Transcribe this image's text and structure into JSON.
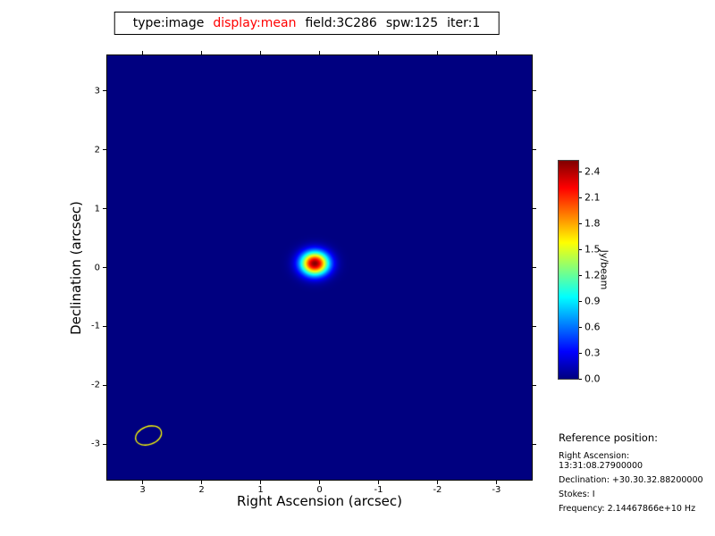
{
  "title_bar": {
    "parts": [
      {
        "text": "type:image",
        "color": "#000000"
      },
      {
        "text": "display:mean",
        "color": "#ff0000"
      },
      {
        "text": "field:3C286",
        "color": "#000000"
      },
      {
        "text": "spw:125",
        "color": "#000000"
      },
      {
        "text": "iter:1",
        "color": "#000000"
      }
    ]
  },
  "chart_data": {
    "type": "heatmap",
    "title": "type:image display:mean field:3C286 spw:125 iter:1",
    "xlabel": "Right Ascension (arcsec)",
    "ylabel": "Declination (arcsec)",
    "xlim": [
      3.6,
      -3.6
    ],
    "ylim": [
      -3.6,
      3.6
    ],
    "x_ticks": [
      3,
      2,
      1,
      0,
      -1,
      -2,
      -3
    ],
    "y_ticks": [
      3,
      2,
      1,
      0,
      -1,
      -2,
      -3
    ],
    "colormap": "jet",
    "background_value": 0.0,
    "source": {
      "description": "2D Gaussian point source at field center",
      "center_x_arcsec": 0.08,
      "center_y_arcsec": 0.07,
      "sigma_x_arcsec": 0.165,
      "sigma_y_arcsec": 0.138,
      "peak_jy_per_beam": 2.5
    },
    "beam_ellipse": {
      "center_x_arcsec": 2.9,
      "center_y_arcsec": -2.85,
      "semi_major_arcsec": 0.227,
      "semi_minor_arcsec": 0.152,
      "rotation_deg": -20,
      "color": "#ffff00"
    },
    "colorbar": {
      "label": "Jy/beam",
      "ticks": [
        0.0,
        0.3,
        0.6,
        0.9,
        1.2,
        1.5,
        1.8,
        2.1,
        2.4
      ],
      "vmin": 0.0,
      "vmax": 2.52
    }
  },
  "reference_position": {
    "heading": "Reference position:",
    "lines": [
      "Right Ascension: 13:31:08.27900000",
      "Declination: +30.30.32.88200000",
      "Stokes: I",
      "Frequency: 2.14467866e+10 Hz"
    ]
  }
}
